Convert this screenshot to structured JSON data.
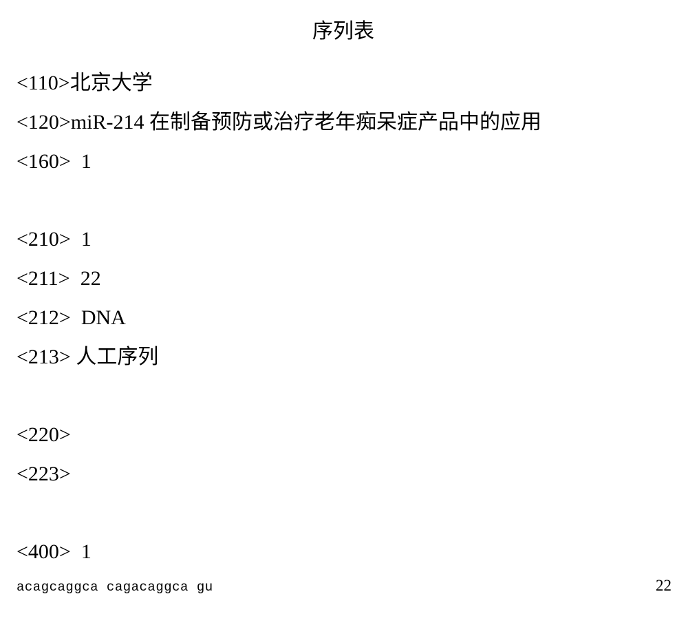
{
  "title": "序列表",
  "entries": {
    "e110": "<110>北京大学",
    "e120": "<120>miR-214 在制备预防或治疗老年痴呆症产品中的应用",
    "e160": "<160>  1",
    "e210": "<210>  1",
    "e211": "<211>  22",
    "e212": "<212>  DNA",
    "e213": "<213> 人工序列",
    "e220": "<220>",
    "e223": "<223>",
    "e400": "<400>  1"
  },
  "sequence": {
    "text": "acagcaggca cagacaggca gu",
    "length": "22"
  },
  "style": {
    "background_color": "#ffffff",
    "text_color": "#000000",
    "main_fontsize": 30,
    "sequence_fontsize": 19
  }
}
